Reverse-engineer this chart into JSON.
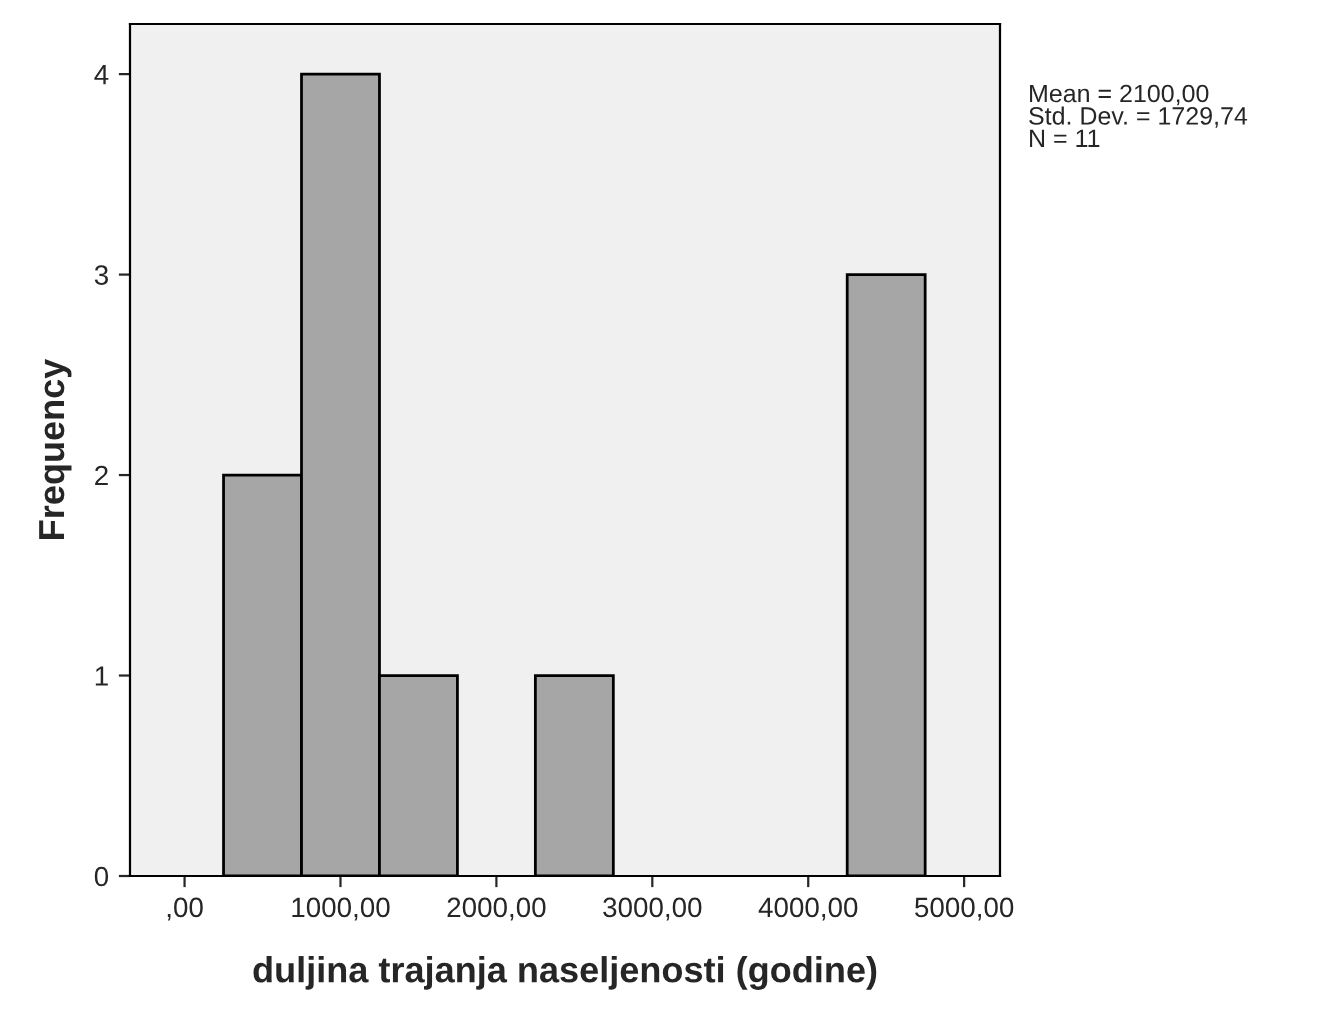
{
  "chart_data": {
    "type": "histogram",
    "xlabel": "duljina trajanja naseljenosti (godine)",
    "ylabel": "Frequency",
    "bins": [
      250,
      750,
      1250,
      1750,
      2250,
      2750,
      3250,
      3750,
      4250,
      4750
    ],
    "values": [
      2,
      4,
      1,
      0,
      1,
      0,
      0,
      0,
      3
    ],
    "color": "#a6a6a6",
    "xlim": [
      -350,
      5230
    ],
    "ylim": [
      0,
      4.25
    ],
    "xticks": [
      {
        "value": 0,
        "label": ",00"
      },
      {
        "value": 1000,
        "label": "1000,00"
      },
      {
        "value": 2000,
        "label": "2000,00"
      },
      {
        "value": 3000,
        "label": "3000,00"
      },
      {
        "value": 4000,
        "label": "4000,00"
      },
      {
        "value": 5000,
        "label": "5000,00"
      }
    ],
    "yticks": [
      0,
      1,
      2,
      3,
      4
    ],
    "annotations": [
      "Mean = 2100,00\nStd. Dev. = 1729,74\nN = 11"
    ],
    "grid": false,
    "legend": false
  }
}
